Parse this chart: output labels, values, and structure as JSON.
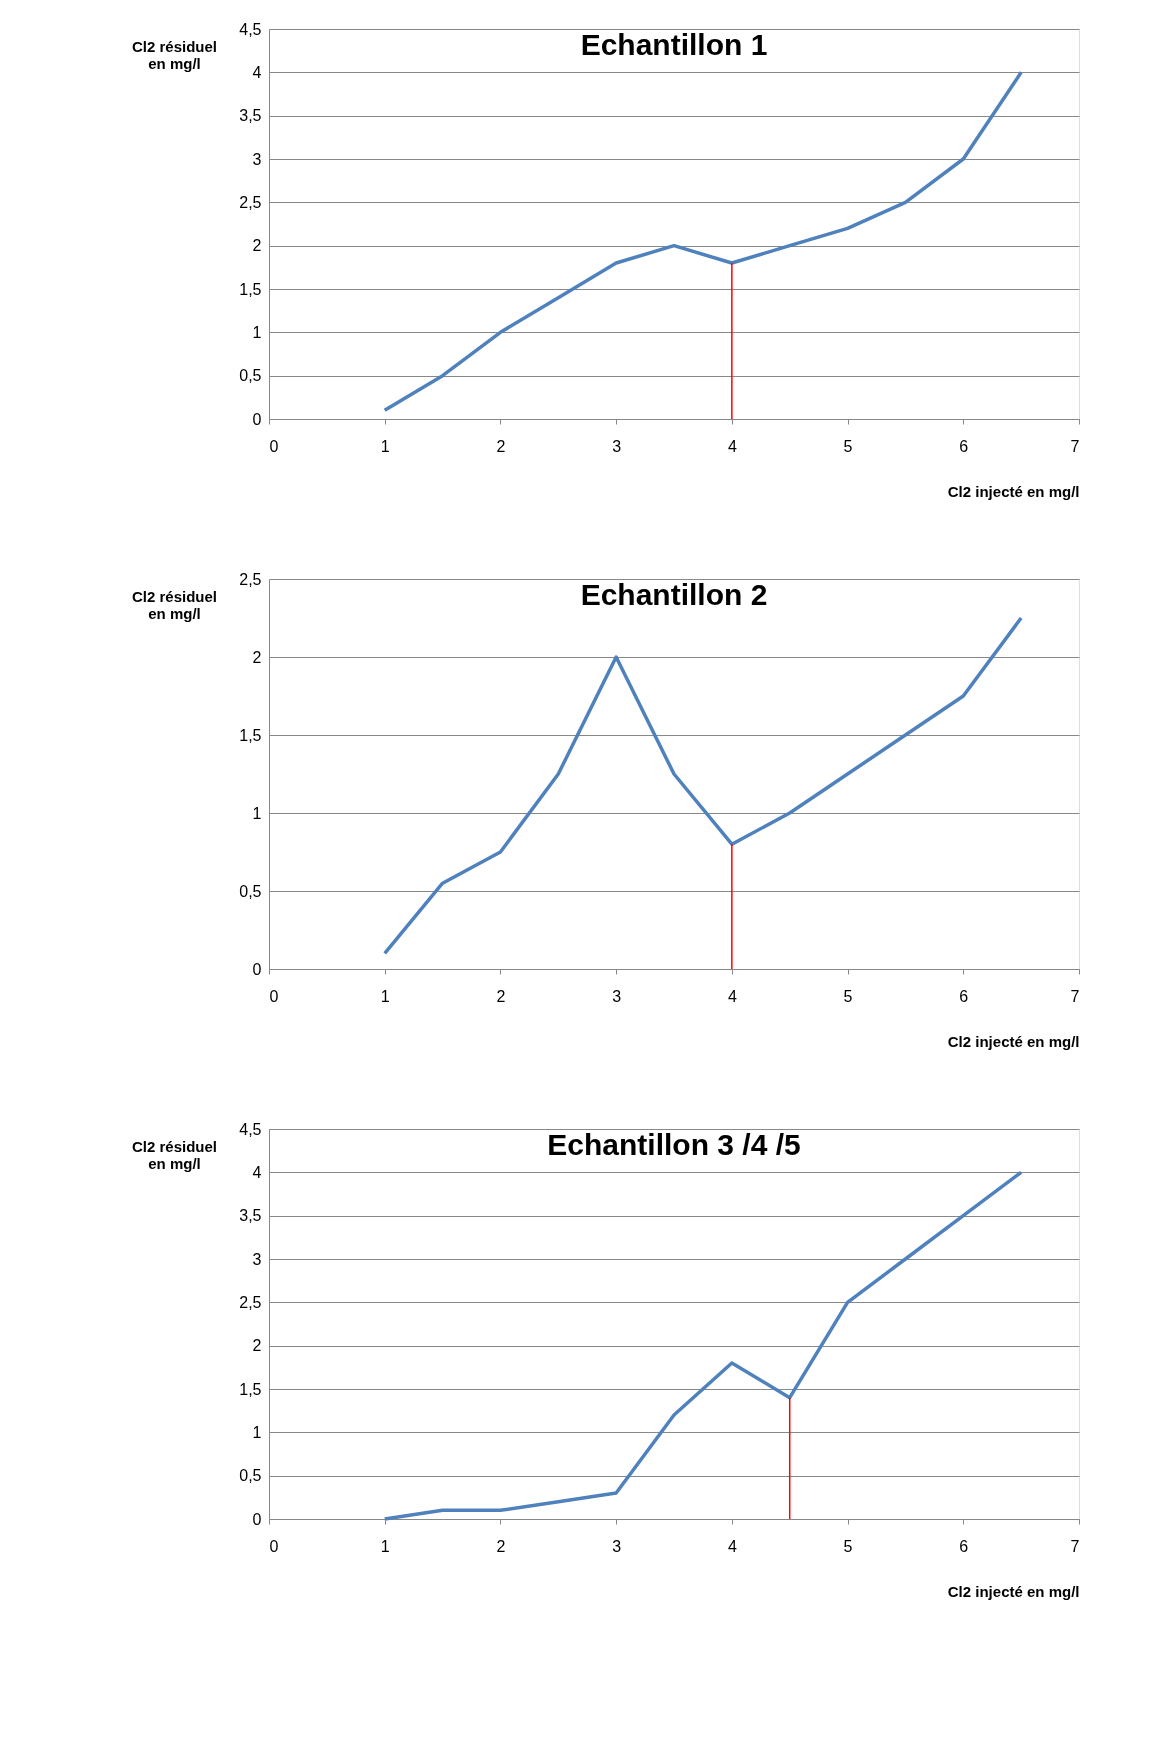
{
  "chart_data": [
    {
      "type": "line",
      "title": "Echantillon 1",
      "xlabel": "Cl2 injecté en mg/l",
      "ylabel": "Cl2 résiduel en mg/l",
      "x": [
        1,
        1.5,
        2,
        2.5,
        3,
        3.5,
        4,
        4.5,
        5,
        5.5,
        6,
        6.5
      ],
      "series": [
        {
          "color": "#4f81bd",
          "values": [
            0.1,
            0.5,
            1.0,
            1.4,
            1.8,
            2.0,
            1.8,
            2.0,
            2.2,
            2.5,
            3.0,
            4.0
          ]
        }
      ],
      "xlim": [
        0,
        7
      ],
      "xticks": [
        0,
        1,
        2,
        3,
        4,
        5,
        6,
        7
      ],
      "ylim": [
        0,
        4.5
      ],
      "yticks": [
        0,
        {
          "value": 0.5,
          "label": "0,5"
        },
        1,
        {
          "value": 1.5,
          "label": "1,5"
        },
        2,
        {
          "value": 2.5,
          "label": "2,5"
        },
        3,
        {
          "value": 3.5,
          "label": "3,5"
        },
        4,
        {
          "value": 4.5,
          "label": "4,5"
        }
      ],
      "ref_lines": [
        {
          "axis": "x",
          "value": 4,
          "color": "#ff0000"
        }
      ],
      "grid": "y",
      "marker": "none",
      "line_style": "solid"
    },
    {
      "type": "line",
      "title": "Echantillon 2",
      "xlabel": "Cl2 injecté en mg/l",
      "ylabel": "Cl2 résiduel en mg/l",
      "x": [
        1,
        1.5,
        2,
        2.5,
        3,
        3.5,
        4,
        4.5,
        5,
        5.5,
        6,
        6.5
      ],
      "series": [
        {
          "color": "#4f81bd",
          "values": [
            0.1,
            0.55,
            0.75,
            1.25,
            2.0,
            1.25,
            0.8,
            1.0,
            1.25,
            1.5,
            1.75,
            2.25
          ]
        }
      ],
      "xlim": [
        0,
        7
      ],
      "xticks": [
        0,
        1,
        2,
        3,
        4,
        5,
        6,
        7
      ],
      "ylim": [
        0,
        2.5
      ],
      "yticks": [
        0,
        {
          "value": 0.5,
          "label": "0,5"
        },
        1,
        {
          "value": 1.5,
          "label": "1,5"
        },
        2,
        {
          "value": 2.5,
          "label": "2,5"
        }
      ],
      "ref_lines": [
        {
          "axis": "x",
          "value": 4,
          "color": "#ff0000"
        }
      ],
      "grid": "y",
      "marker": "none",
      "line_style": "solid"
    },
    {
      "type": "line",
      "title": "Echantillon 3 /4 /5",
      "xlabel": "Cl2 injecté en mg/l",
      "ylabel": "Cl2 résiduel en mg/l",
      "x": [
        1,
        1.5,
        2,
        2.5,
        3,
        3.5,
        4,
        4.5,
        5,
        5.5,
        6,
        6.5
      ],
      "series": [
        {
          "color": "#4f81bd",
          "values": [
            0,
            0.1,
            0.1,
            0.2,
            0.3,
            1.2,
            1.8,
            1.4,
            2.5,
            3.0,
            3.5,
            4.0
          ]
        }
      ],
      "xlim": [
        0,
        7
      ],
      "xticks": [
        0,
        1,
        2,
        3,
        4,
        5,
        6,
        7
      ],
      "ylim": [
        0,
        4.5
      ],
      "yticks": [
        0,
        {
          "value": 0.5,
          "label": "0,5"
        },
        1,
        {
          "value": 1.5,
          "label": "1,5"
        },
        2,
        {
          "value": 2.5,
          "label": "2,5"
        },
        3,
        {
          "value": 3.5,
          "label": "3,5"
        },
        4,
        {
          "value": 4.5,
          "label": "4,5"
        }
      ],
      "ref_lines": [
        {
          "axis": "x",
          "value": 4.5,
          "color": "#ff0000"
        }
      ],
      "grid": "y",
      "marker": "none",
      "line_style": "solid"
    }
  ]
}
